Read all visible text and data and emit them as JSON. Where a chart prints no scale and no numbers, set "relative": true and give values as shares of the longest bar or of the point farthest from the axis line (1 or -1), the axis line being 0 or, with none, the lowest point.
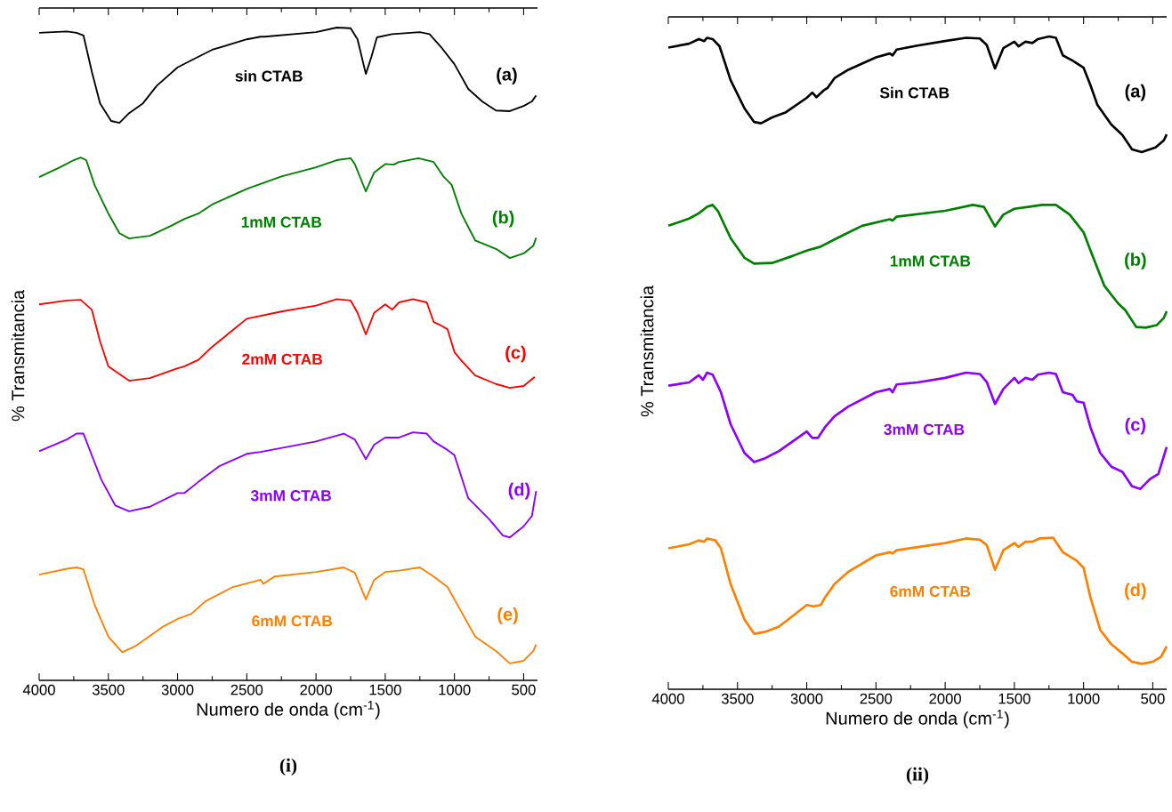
{
  "chart_data": [
    {
      "type": "line",
      "title": "(i)",
      "xlabel": "Numero de onda (cm$^{-1}$)",
      "ylabel": "% Transmitancia",
      "relative": true,
      "xlim": [
        4000,
        400
      ],
      "xticks": [
        4000,
        3500,
        3000,
        2500,
        2000,
        1500,
        1000,
        500
      ],
      "annotations": [
        "(a)",
        "(b)",
        "(c)",
        "(d)",
        "(e)"
      ],
      "series": [
        {
          "name": "sin CTAB",
          "color": "#000000",
          "x": [
            4000,
            3800,
            3730,
            3680,
            3620,
            3560,
            3480,
            3420,
            3350,
            3250,
            3150,
            3000,
            2900,
            2750,
            2500,
            2400,
            2370,
            2000,
            1850,
            1750,
            1700,
            1640,
            1600,
            1560,
            1450,
            1250,
            1180,
            1100,
            1000,
            900,
            800,
            700,
            600,
            500,
            440,
            410
          ],
          "values": [
            0.992,
            0.994,
            0.992,
            0.988,
            0.933,
            0.884,
            0.857,
            0.854,
            0.869,
            0.884,
            0.911,
            0.939,
            0.95,
            0.966,
            0.982,
            0.986,
            0.986,
            0.993,
            1.0,
            0.999,
            0.982,
            0.929,
            0.955,
            0.985,
            0.99,
            0.993,
            0.99,
            0.971,
            0.944,
            0.906,
            0.887,
            0.873,
            0.872,
            0.88,
            0.887,
            0.896
          ]
        },
        {
          "name": "1mM CTAB",
          "color": "#008000",
          "x": [
            4000,
            3850,
            3750,
            3700,
            3660,
            3600,
            3500,
            3420,
            3350,
            3200,
            3050,
            2950,
            2850,
            2750,
            2500,
            2250,
            2000,
            1850,
            1750,
            1720,
            1640,
            1580,
            1500,
            1440,
            1400,
            1260,
            1150,
            1080,
            1020,
            950,
            850,
            700,
            600,
            500,
            430,
            410
          ],
          "values": [
            0.771,
            0.786,
            0.797,
            0.801,
            0.797,
            0.759,
            0.715,
            0.685,
            0.677,
            0.681,
            0.696,
            0.707,
            0.715,
            0.729,
            0.753,
            0.772,
            0.786,
            0.797,
            0.8,
            0.791,
            0.749,
            0.778,
            0.791,
            0.79,
            0.794,
            0.8,
            0.794,
            0.772,
            0.759,
            0.715,
            0.674,
            0.661,
            0.647,
            0.654,
            0.666,
            0.678
          ]
        },
        {
          "name": "2mM CTAB",
          "color": "#ff0000",
          "x": [
            4000,
            3800,
            3700,
            3620,
            3560,
            3500,
            3350,
            3200,
            3000,
            2950,
            2850,
            2750,
            2500,
            2250,
            2000,
            1850,
            1750,
            1700,
            1640,
            1580,
            1500,
            1450,
            1400,
            1300,
            1200,
            1150,
            1100,
            1050,
            1000,
            950,
            850,
            700,
            600,
            500,
            420
          ],
          "values": [
            0.576,
            0.582,
            0.583,
            0.568,
            0.519,
            0.481,
            0.459,
            0.463,
            0.478,
            0.481,
            0.491,
            0.511,
            0.554,
            0.565,
            0.574,
            0.584,
            0.582,
            0.563,
            0.53,
            0.563,
            0.576,
            0.568,
            0.579,
            0.584,
            0.579,
            0.549,
            0.544,
            0.538,
            0.503,
            0.49,
            0.467,
            0.454,
            0.448,
            0.451,
            0.465
          ]
        },
        {
          "name": "3mM CTAB",
          "color": "#8b00ff",
          "x": [
            4000,
            3800,
            3730,
            3680,
            3620,
            3550,
            3450,
            3350,
            3200,
            3000,
            2950,
            2850,
            2700,
            2500,
            2400,
            2200,
            2000,
            1800,
            1720,
            1640,
            1580,
            1500,
            1400,
            1300,
            1200,
            1150,
            1050,
            1000,
            900,
            750,
            650,
            600,
            500,
            440,
            410
          ],
          "values": [
            0.351,
            0.369,
            0.378,
            0.378,
            0.345,
            0.307,
            0.268,
            0.259,
            0.266,
            0.287,
            0.287,
            0.304,
            0.328,
            0.347,
            0.35,
            0.358,
            0.366,
            0.378,
            0.369,
            0.339,
            0.361,
            0.372,
            0.372,
            0.38,
            0.378,
            0.366,
            0.353,
            0.345,
            0.279,
            0.247,
            0.222,
            0.219,
            0.236,
            0.252,
            0.29
          ]
        },
        {
          "name": "6mM CTAB",
          "color": "#ff8000",
          "x": [
            4000,
            3800,
            3730,
            3680,
            3600,
            3500,
            3400,
            3300,
            3100,
            3000,
            2900,
            2800,
            2600,
            2400,
            2380,
            2300,
            2000,
            1800,
            1720,
            1640,
            1580,
            1500,
            1400,
            1250,
            1150,
            1050,
            950,
            850,
            700,
            600,
            500,
            430,
            410
          ],
          "values": [
            0.162,
            0.171,
            0.173,
            0.17,
            0.116,
            0.067,
            0.043,
            0.053,
            0.083,
            0.094,
            0.102,
            0.121,
            0.143,
            0.154,
            0.148,
            0.159,
            0.166,
            0.173,
            0.165,
            0.124,
            0.154,
            0.166,
            0.168,
            0.173,
            0.159,
            0.143,
            0.105,
            0.067,
            0.045,
            0.026,
            0.03,
            0.045,
            0.055
          ]
        }
      ]
    },
    {
      "type": "line",
      "title": "(ii)",
      "xlabel": "Numero de onda (cm$^{-1}$)",
      "ylabel": "% Transmitancia",
      "relative": true,
      "xlim": [
        4000,
        400
      ],
      "xticks": [
        4000,
        3500,
        3000,
        2500,
        2000,
        1500,
        1000,
        500
      ],
      "annotations": [
        "(a)",
        "(b)",
        "(c)",
        "(d)"
      ],
      "series": [
        {
          "name": "Sin CTAB",
          "color": "#000000",
          "x": [
            4000,
            3850,
            3780,
            3740,
            3720,
            3680,
            3630,
            3550,
            3450,
            3380,
            3330,
            3250,
            3150,
            3000,
            2960,
            2930,
            2880,
            2850,
            2800,
            2700,
            2500,
            2400,
            2380,
            2350,
            2200,
            2000,
            1850,
            1750,
            1700,
            1640,
            1580,
            1500,
            1470,
            1420,
            1370,
            1330,
            1250,
            1200,
            1150,
            1080,
            1000,
            950,
            900,
            800,
            720,
            650,
            580,
            480,
            420,
            400
          ],
          "values": [
            0.983,
            0.989,
            0.996,
            0.993,
            0.998,
            0.996,
            0.985,
            0.933,
            0.89,
            0.869,
            0.867,
            0.876,
            0.884,
            0.906,
            0.914,
            0.907,
            0.917,
            0.921,
            0.936,
            0.949,
            0.968,
            0.974,
            0.971,
            0.98,
            0.986,
            0.993,
            0.998,
            0.997,
            0.987,
            0.951,
            0.982,
            0.992,
            0.985,
            0.992,
            0.99,
            0.996,
            1.0,
            0.998,
            0.971,
            0.963,
            0.952,
            0.925,
            0.895,
            0.865,
            0.849,
            0.827,
            0.823,
            0.83,
            0.841,
            0.85
          ]
        },
        {
          "name": "1mM CTAB",
          "color": "#008000",
          "x": [
            4000,
            3850,
            3780,
            3720,
            3680,
            3640,
            3550,
            3450,
            3380,
            3250,
            3100,
            3000,
            2900,
            2800,
            2600,
            2400,
            2380,
            2350,
            2000,
            1800,
            1720,
            1640,
            1580,
            1500,
            1400,
            1300,
            1200,
            1100,
            1000,
            950,
            850,
            750,
            700,
            620,
            550,
            470,
            420,
            400
          ],
          "values": [
            0.71,
            0.721,
            0.729,
            0.739,
            0.742,
            0.732,
            0.691,
            0.661,
            0.652,
            0.653,
            0.664,
            0.672,
            0.678,
            0.689,
            0.71,
            0.72,
            0.718,
            0.724,
            0.733,
            0.742,
            0.739,
            0.709,
            0.727,
            0.736,
            0.739,
            0.742,
            0.742,
            0.727,
            0.7,
            0.672,
            0.618,
            0.591,
            0.581,
            0.555,
            0.554,
            0.558,
            0.569,
            0.579
          ]
        },
        {
          "name": "3mM CTAB",
          "color": "#8b00ff",
          "x": [
            4000,
            3850,
            3780,
            3750,
            3720,
            3680,
            3620,
            3550,
            3450,
            3380,
            3300,
            3200,
            3000,
            2960,
            2920,
            2870,
            2800,
            2700,
            2500,
            2400,
            2380,
            2350,
            2200,
            2000,
            1850,
            1750,
            1700,
            1640,
            1580,
            1500,
            1470,
            1420,
            1370,
            1330,
            1250,
            1200,
            1150,
            1080,
            1050,
            1000,
            950,
            880,
            800,
            720,
            650,
            590,
            520,
            460,
            400
          ],
          "values": [
            0.465,
            0.47,
            0.481,
            0.474,
            0.485,
            0.482,
            0.455,
            0.406,
            0.362,
            0.348,
            0.354,
            0.365,
            0.395,
            0.385,
            0.385,
            0.401,
            0.418,
            0.433,
            0.455,
            0.46,
            0.455,
            0.467,
            0.47,
            0.477,
            0.485,
            0.483,
            0.471,
            0.437,
            0.46,
            0.477,
            0.469,
            0.477,
            0.474,
            0.482,
            0.485,
            0.483,
            0.455,
            0.451,
            0.441,
            0.439,
            0.401,
            0.362,
            0.341,
            0.333,
            0.311,
            0.307,
            0.322,
            0.33,
            0.371
          ]
        },
        {
          "name": "6mM CTAB",
          "color": "#ff8000",
          "x": [
            4000,
            3850,
            3780,
            3740,
            3720,
            3660,
            3620,
            3550,
            3450,
            3380,
            3300,
            3200,
            3000,
            2950,
            2900,
            2870,
            2800,
            2700,
            2500,
            2400,
            2380,
            2350,
            2000,
            1850,
            1750,
            1700,
            1640,
            1580,
            1500,
            1470,
            1420,
            1370,
            1320,
            1220,
            1150,
            1050,
            1000,
            950,
            880,
            800,
            720,
            650,
            580,
            500,
            440,
            400
          ],
          "values": [
            0.216,
            0.222,
            0.228,
            0.226,
            0.231,
            0.228,
            0.216,
            0.161,
            0.107,
            0.085,
            0.088,
            0.096,
            0.129,
            0.127,
            0.129,
            0.14,
            0.161,
            0.18,
            0.205,
            0.21,
            0.208,
            0.213,
            0.224,
            0.231,
            0.229,
            0.221,
            0.183,
            0.213,
            0.224,
            0.218,
            0.226,
            0.226,
            0.231,
            0.232,
            0.21,
            0.197,
            0.186,
            0.14,
            0.091,
            0.069,
            0.055,
            0.042,
            0.039,
            0.042,
            0.05,
            0.066
          ]
        }
      ]
    }
  ]
}
